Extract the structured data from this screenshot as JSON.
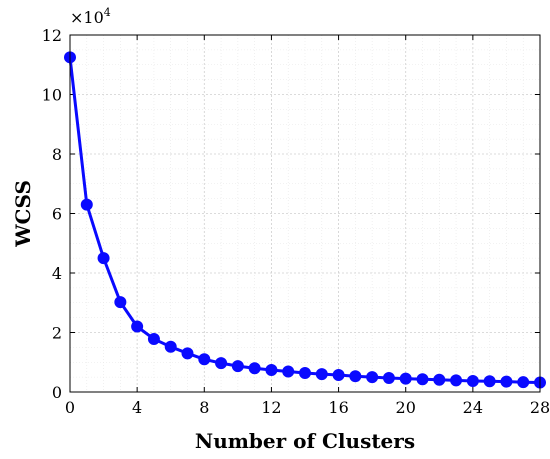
{
  "chart_data": {
    "type": "line",
    "title": "",
    "xlabel": "Number of Clusters",
    "ylabel": "WCSS",
    "y_multiplier_label": {
      "base": "×10",
      "exponent": "4"
    },
    "xlim": [
      0,
      28
    ],
    "ylim": [
      0,
      12
    ],
    "x_ticks": [
      0,
      4,
      8,
      12,
      16,
      20,
      24,
      28
    ],
    "y_ticks": [
      0,
      2,
      4,
      6,
      8,
      10,
      12
    ],
    "grid": true,
    "legend": "none",
    "line_color": "#0a0aff",
    "series": [
      {
        "x": [
          0,
          1,
          2,
          3,
          4,
          5,
          6,
          7,
          8,
          9,
          10,
          11,
          12,
          13,
          14,
          15,
          16,
          17,
          18,
          19,
          20,
          21,
          22,
          23,
          24,
          25,
          26,
          27,
          28
        ],
        "values": [
          11.25,
          6.3,
          4.5,
          3.02,
          2.2,
          1.78,
          1.52,
          1.3,
          1.1,
          0.97,
          0.87,
          0.8,
          0.74,
          0.69,
          0.64,
          0.6,
          0.57,
          0.53,
          0.5,
          0.47,
          0.45,
          0.43,
          0.41,
          0.39,
          0.37,
          0.36,
          0.35,
          0.33,
          0.32
        ]
      }
    ]
  }
}
